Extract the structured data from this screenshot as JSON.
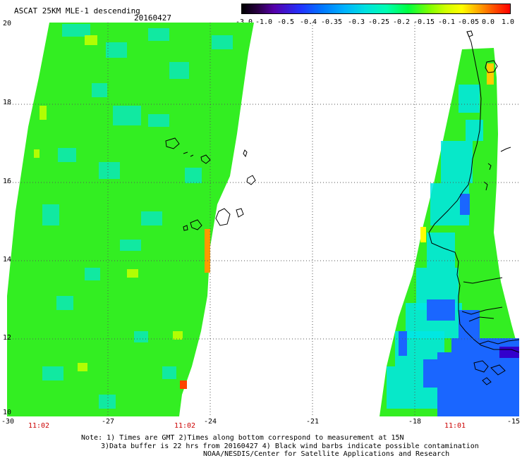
{
  "header": {
    "title": "ASCAT 25KM MLE-1 descending",
    "date": "20160427"
  },
  "colorbar": {
    "labels": [
      "-3.0",
      "-1.0",
      "-0.5",
      "-0.4",
      "-0.35",
      "-0.3",
      "-0.25",
      "-0.2",
      "-0.15",
      "-0.1",
      "-0.05",
      "0.0",
      "1.0"
    ]
  },
  "map": {
    "lat_labels": [
      "20",
      "18",
      "16",
      "14",
      "12",
      "10"
    ],
    "lon_labels": [
      "-30",
      "-27",
      "-24",
      "-21",
      "-18",
      "-15"
    ],
    "pass_times": [
      "11:02",
      "11:02",
      "11:01"
    ],
    "colors": {
      "green": "#33ee22",
      "cyan": "#00e6e6",
      "blue": "#1a66ff",
      "dark_blue": "#3300cc",
      "yellow_orange": "#ff9900",
      "red_orange": "#ff4400"
    }
  },
  "notes": {
    "line1": "Note: 1) Times are GMT 2)Times along bottom correspond to measurement at 15N",
    "line2": "3)Data buffer is 22 hrs from 20160427 4) Black wind barbs indicate possible contamination",
    "line3": "NOAA/NESDIS/Center for Satellite Applications and Research"
  }
}
